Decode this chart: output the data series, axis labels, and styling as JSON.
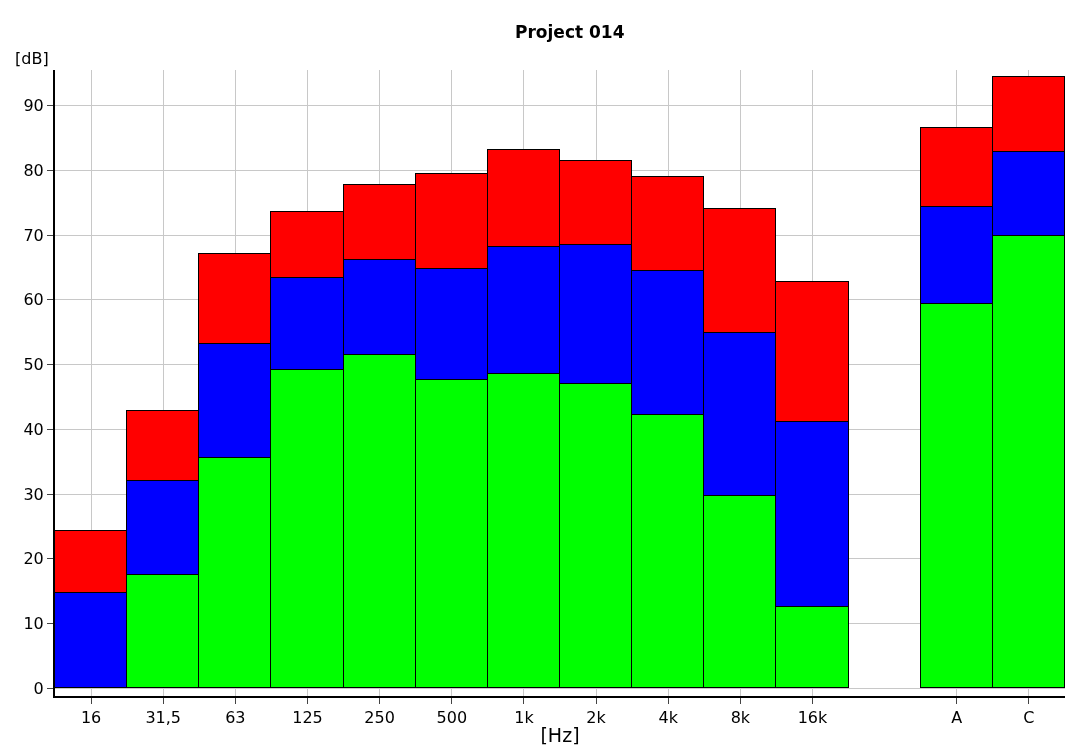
{
  "chart_data": {
    "type": "bar",
    "title": "Project 014",
    "xlabel": "[Hz]",
    "ylabel": "[dB]",
    "stacked": true,
    "categories": [
      "16",
      "31,5",
      "63",
      "125",
      "250",
      "500",
      "1k",
      "2k",
      "4k",
      "8k",
      "16k",
      null,
      "A",
      "C"
    ],
    "series": [
      {
        "color": "#00ff00",
        "values": [
          null,
          17.5,
          35.5,
          49.2,
          51.4,
          47.6,
          48.6,
          47.0,
          42.2,
          29.7,
          12.5,
          null,
          59.3,
          69.8
        ]
      },
      {
        "color": "#0000ff",
        "values": [
          14.7,
          14.5,
          17.6,
          14.2,
          14.7,
          17.2,
          19.6,
          21.4,
          22.3,
          25.2,
          28.7,
          null,
          15.0,
          13.1
        ]
      },
      {
        "color": "#ff0000",
        "values": [
          9.6,
          10.9,
          14.0,
          10.2,
          11.6,
          14.7,
          15.0,
          13.0,
          14.5,
          19.2,
          21.6,
          null,
          12.2,
          11.5
        ]
      }
    ],
    "ylim": [
      -1.2,
      95.5
    ],
    "yticks": [
      0,
      10,
      20,
      30,
      40,
      50,
      60,
      70,
      80,
      90
    ],
    "grid": true
  }
}
